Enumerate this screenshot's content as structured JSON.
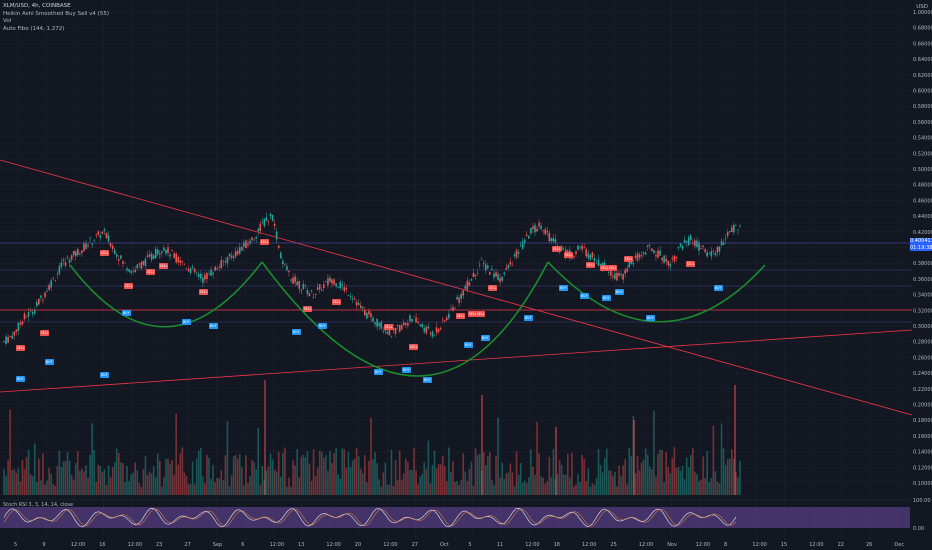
{
  "legend": {
    "symbol": "XLM/USD, 4h, COINBASE",
    "indicator1": "Heikin Ashi Smoothed Buy Sell v4 (55)",
    "indicator2": "Vol",
    "indicator3": "Auto Fibo (144, 1.272)"
  },
  "axis": {
    "currency": "USD",
    "price_ticks": [
      "1.000000",
      "0.680000",
      "0.660000",
      "0.640000",
      "0.620000",
      "0.600000",
      "0.580000",
      "0.560000",
      "0.540000",
      "0.520000",
      "0.500000",
      "0.480000",
      "0.460000",
      "0.440000",
      "0.420000",
      "0.400000",
      "0.380000",
      "0.360000",
      "0.340000",
      "0.320000",
      "0.300000",
      "0.280000",
      "0.260000",
      "0.240000",
      "0.220000",
      "0.200000",
      "0.180000",
      "0.160000",
      "0.140000",
      "0.120000",
      "0.100000"
    ],
    "time_ticks": [
      "5",
      "9",
      "12:00",
      "16",
      "12:00",
      "23",
      "27",
      "Sep",
      "6",
      "12:00",
      "13",
      "12:00",
      "20",
      "12:00",
      "27",
      "Oct",
      "5",
      "11",
      "12:00",
      "18",
      "12:00",
      "25",
      "12:00",
      "Nov",
      "12:00",
      "8",
      "12:00",
      "15",
      "12:00",
      "22",
      "26",
      "Dec"
    ]
  },
  "price_tags": {
    "last": "0.400417",
    "countdown": "01:19:38"
  },
  "stoch": {
    "label": "Stoch RSI 3, 3, 14, 14, close",
    "upper": "100.00",
    "lower": "0.00"
  },
  "signals": {
    "sell": "SELL",
    "buy": "BUY"
  },
  "colors": {
    "background": "#131722",
    "up": "#26a69a",
    "down": "#ef5350",
    "trendline": "#f23645",
    "cup_curve": "#1b8c2e",
    "stoch_band": "#7e57c2",
    "stoch_line": "#d1d4dc",
    "price_tag": "#2962ff"
  },
  "chart_data": {
    "type": "candlestick",
    "title": "XLM/USD, 4h, COINBASE",
    "ylim": [
      0.1,
      0.68
    ],
    "ohlc_close_path": [
      0.26,
      0.27,
      0.29,
      0.3,
      0.32,
      0.34,
      0.36,
      0.37,
      0.38,
      0.39,
      0.4,
      0.38,
      0.36,
      0.35,
      0.36,
      0.37,
      0.38,
      0.37,
      0.36,
      0.35,
      0.34,
      0.35,
      0.36,
      0.37,
      0.38,
      0.39,
      0.41,
      0.42,
      0.36,
      0.34,
      0.33,
      0.32,
      0.33,
      0.34,
      0.33,
      0.32,
      0.3,
      0.29,
      0.28,
      0.27,
      0.28,
      0.29,
      0.28,
      0.27,
      0.28,
      0.3,
      0.32,
      0.34,
      0.36,
      0.35,
      0.34,
      0.36,
      0.38,
      0.4,
      0.41,
      0.39,
      0.38,
      0.37,
      0.38,
      0.37,
      0.36,
      0.35,
      0.34,
      0.36,
      0.37,
      0.38,
      0.37,
      0.36,
      0.38,
      0.39,
      0.38,
      0.37,
      0.38,
      0.4,
      0.41
    ]
  }
}
